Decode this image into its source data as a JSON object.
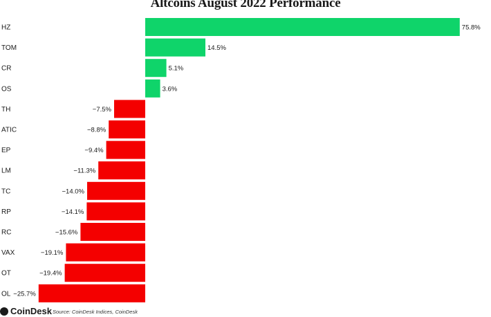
{
  "chart_data": {
    "type": "bar",
    "orientation": "horizontal",
    "title": "Altcoins August 2022 Performance",
    "categories": [
      "HZ",
      "TOM",
      "CR",
      "OS",
      "TH",
      "ATIC",
      "EP",
      "LM",
      "TC",
      "RP",
      "RC",
      "VAX",
      "OT",
      "OL"
    ],
    "values": [
      75.8,
      14.5,
      5.1,
      3.6,
      -7.5,
      -8.8,
      -9.4,
      -11.3,
      -14.0,
      -14.1,
      -15.6,
      -19.1,
      -19.4,
      -25.7
    ],
    "value_labels": [
      "75.8%",
      "14.5%",
      "5.1%",
      "3.6%",
      "−7.5%",
      "−8.8%",
      "−9.4%",
      "−11.3%",
      "−14.0%",
      "−14.1%",
      "−15.6%",
      "−19.1%",
      "−19.4%",
      "−25.7%"
    ],
    "xlabel": "",
    "ylabel": "",
    "grid": false,
    "colors": {
      "positive": "#0fd46a",
      "negative": "#f40000"
    }
  },
  "footer": {
    "brand": "CoinDesk",
    "source": "Source: CoinDesk Indices, CoinDesk"
  }
}
